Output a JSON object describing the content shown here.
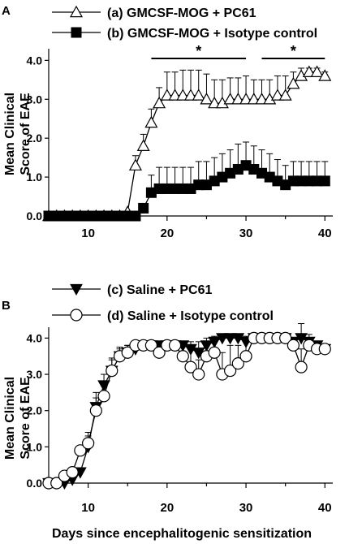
{
  "xlabel": "Days since encephalitogenic sensitization",
  "chart_data": [
    {
      "type": "line",
      "panel_label": "A",
      "title": "",
      "ylabel": "Mean Clinical Score of EAE",
      "ylabel_lines": [
        "Mean Clinical",
        "Score of EAE"
      ],
      "xlim": [
        5,
        41
      ],
      "ylim": [
        0,
        4.3
      ],
      "xticks": [
        10,
        20,
        30,
        40
      ],
      "yticks": [
        0.0,
        1.0,
        2.0,
        3.0,
        4.0
      ],
      "ytick_labels": [
        "0.0",
        "1.0",
        "2.0",
        "3.0",
        "4.0"
      ],
      "grid": false,
      "legend": "top",
      "series": [
        {
          "name": "(a) GMCSF-MOG + PC61",
          "marker": "triangle-up-open",
          "points": [
            [
              5,
              0
            ],
            [
              6,
              0
            ],
            [
              7,
              0
            ],
            [
              8,
              0
            ],
            [
              9,
              0
            ],
            [
              10,
              0
            ],
            [
              11,
              0
            ],
            [
              12,
              0
            ],
            [
              13,
              0
            ],
            [
              14,
              0
            ],
            [
              15,
              0.1
            ],
            [
              16,
              1.3
            ],
            [
              17,
              1.8
            ],
            [
              18,
              2.4
            ],
            [
              19,
              2.9
            ],
            [
              20,
              3.1
            ],
            [
              21,
              3.1
            ],
            [
              22,
              3.1
            ],
            [
              23,
              3.1
            ],
            [
              24,
              3.1
            ],
            [
              25,
              3.0
            ],
            [
              26,
              2.9
            ],
            [
              27,
              2.9
            ],
            [
              28,
              3.0
            ],
            [
              29,
              3.0
            ],
            [
              30,
              3.0
            ],
            [
              31,
              3.0
            ],
            [
              32,
              3.0
            ],
            [
              33,
              3.0
            ],
            [
              34,
              3.1
            ],
            [
              35,
              3.1
            ],
            [
              36,
              3.4
            ],
            [
              37,
              3.6
            ],
            [
              38,
              3.7
            ],
            [
              39,
              3.7
            ],
            [
              40,
              3.6
            ]
          ],
          "errors": [
            [
              16,
              0.25
            ],
            [
              17,
              0.3
            ],
            [
              18,
              0.35
            ],
            [
              19,
              0.4
            ],
            [
              20,
              0.6
            ],
            [
              21,
              0.6
            ],
            [
              22,
              0.65
            ],
            [
              23,
              0.65
            ],
            [
              24,
              0.65
            ],
            [
              25,
              0.65
            ],
            [
              26,
              0.6
            ],
            [
              27,
              0.6
            ],
            [
              28,
              0.55
            ],
            [
              29,
              0.55
            ],
            [
              30,
              0.6
            ],
            [
              31,
              0.5
            ],
            [
              32,
              0.5
            ],
            [
              33,
              0.5
            ],
            [
              34,
              0.5
            ],
            [
              35,
              0.5
            ],
            [
              36,
              0.3
            ],
            [
              37,
              0.2
            ],
            [
              38,
              0.1
            ],
            [
              39,
              0.1
            ],
            [
              40,
              0.1
            ]
          ]
        },
        {
          "name": "(b) GMCSF-MOG + Isotype control",
          "marker": "square-filled",
          "points": [
            [
              5,
              0
            ],
            [
              6,
              0
            ],
            [
              7,
              0
            ],
            [
              8,
              0
            ],
            [
              9,
              0
            ],
            [
              10,
              0
            ],
            [
              11,
              0
            ],
            [
              12,
              0
            ],
            [
              13,
              0
            ],
            [
              14,
              0
            ],
            [
              15,
              0
            ],
            [
              16,
              0
            ],
            [
              17,
              0.2
            ],
            [
              18,
              0.6
            ],
            [
              19,
              0.7
            ],
            [
              20,
              0.7
            ],
            [
              21,
              0.7
            ],
            [
              22,
              0.7
            ],
            [
              23,
              0.7
            ],
            [
              24,
              0.8
            ],
            [
              25,
              0.8
            ],
            [
              26,
              0.9
            ],
            [
              27,
              1.0
            ],
            [
              28,
              1.1
            ],
            [
              29,
              1.2
            ],
            [
              30,
              1.3
            ],
            [
              31,
              1.2
            ],
            [
              32,
              1.1
            ],
            [
              33,
              1.0
            ],
            [
              34,
              0.9
            ],
            [
              35,
              0.8
            ],
            [
              36,
              0.9
            ],
            [
              37,
              0.9
            ],
            [
              38,
              0.9
            ],
            [
              39,
              0.9
            ],
            [
              40,
              0.9
            ]
          ],
          "errors": [
            [
              18,
              0.45
            ],
            [
              19,
              0.55
            ],
            [
              20,
              0.55
            ],
            [
              21,
              0.55
            ],
            [
              22,
              0.55
            ],
            [
              23,
              0.55
            ],
            [
              24,
              0.6
            ],
            [
              25,
              0.6
            ],
            [
              26,
              0.6
            ],
            [
              27,
              0.6
            ],
            [
              28,
              0.6
            ],
            [
              29,
              0.65
            ],
            [
              30,
              0.6
            ],
            [
              31,
              0.6
            ],
            [
              32,
              0.6
            ],
            [
              33,
              0.6
            ],
            [
              34,
              0.55
            ],
            [
              35,
              0.5
            ],
            [
              36,
              0.5
            ],
            [
              37,
              0.5
            ],
            [
              38,
              0.5
            ],
            [
              39,
              0.5
            ],
            [
              40,
              0.5
            ]
          ]
        }
      ],
      "annotations": [
        {
          "text": "*",
          "x_start": 18,
          "x_end": 30,
          "y": 4.05
        },
        {
          "text": "*",
          "x_start": 32,
          "x_end": 40,
          "y": 4.05
        }
      ]
    },
    {
      "type": "line",
      "panel_label": "B",
      "title": "",
      "ylabel": "Mean Clinical Score of EAE",
      "ylabel_lines": [
        "Mean Clinical",
        "Score of EAE"
      ],
      "xlim": [
        5,
        41
      ],
      "ylim": [
        0,
        4.3
      ],
      "xticks": [
        10,
        20,
        30,
        40
      ],
      "yticks": [
        0.0,
        1.0,
        2.0,
        3.0,
        4.0
      ],
      "ytick_labels": [
        "0.0",
        "1.0",
        "2.0",
        "3.0",
        "4.0"
      ],
      "grid": false,
      "legend": "top",
      "series": [
        {
          "name": "(c) Saline + PC61",
          "marker": "triangle-down-filled",
          "points": [
            [
              5,
              0
            ],
            [
              6,
              0
            ],
            [
              7,
              0
            ],
            [
              8,
              0.1
            ],
            [
              9,
              0.3
            ],
            [
              10,
              1.0
            ],
            [
              11,
              2.1
            ],
            [
              12,
              2.7
            ],
            [
              13,
              3.1
            ],
            [
              14,
              3.5
            ],
            [
              15,
              3.6
            ],
            [
              16,
              3.7
            ],
            [
              17,
              3.8
            ],
            [
              18,
              3.8
            ],
            [
              19,
              3.8
            ],
            [
              20,
              3.8
            ],
            [
              21,
              3.8
            ],
            [
              22,
              3.8
            ],
            [
              23,
              3.7
            ],
            [
              24,
              3.6
            ],
            [
              25,
              3.8
            ],
            [
              26,
              3.9
            ],
            [
              27,
              4.0
            ],
            [
              28,
              4.0
            ],
            [
              29,
              4.0
            ],
            [
              30,
              3.9
            ],
            [
              31,
              4.0
            ],
            [
              32,
              4.0
            ],
            [
              33,
              4.0
            ],
            [
              34,
              4.0
            ],
            [
              35,
              4.0
            ],
            [
              36,
              3.9
            ],
            [
              37,
              4.0
            ],
            [
              38,
              3.9
            ],
            [
              39,
              3.8
            ],
            [
              40,
              3.7
            ]
          ],
          "errors": [
            [
              10,
              0.3
            ],
            [
              11,
              0.4
            ],
            [
              12,
              0.3
            ],
            [
              13,
              0.3
            ],
            [
              14,
              0.2
            ],
            [
              15,
              0.2
            ],
            [
              16,
              0.15
            ],
            [
              17,
              0.1
            ],
            [
              18,
              0.1
            ],
            [
              20,
              0.1
            ],
            [
              23,
              0.2
            ],
            [
              24,
              0.3
            ],
            [
              25,
              0.2
            ],
            [
              26,
              0.15
            ],
            [
              30,
              0.15
            ],
            [
              37,
              0.4
            ],
            [
              38,
              0.2
            ]
          ]
        },
        {
          "name": "(d) Saline + Isotype control",
          "marker": "circle-open",
          "points": [
            [
              5,
              0
            ],
            [
              6,
              0
            ],
            [
              7,
              0.2
            ],
            [
              8,
              0.3
            ],
            [
              9,
              0.9
            ],
            [
              10,
              1.1
            ],
            [
              11,
              2.0
            ],
            [
              12,
              2.4
            ],
            [
              13,
              3.1
            ],
            [
              14,
              3.5
            ],
            [
              15,
              3.6
            ],
            [
              16,
              3.8
            ],
            [
              17,
              3.8
            ],
            [
              18,
              3.8
            ],
            [
              19,
              3.6
            ],
            [
              20,
              3.8
            ],
            [
              21,
              3.8
            ],
            [
              22,
              3.5
            ],
            [
              23,
              3.2
            ],
            [
              24,
              3.0
            ],
            [
              25,
              3.5
            ],
            [
              26,
              3.6
            ],
            [
              27,
              3.0
            ],
            [
              28,
              3.1
            ],
            [
              29,
              3.3
            ],
            [
              30,
              3.5
            ],
            [
              31,
              4.0
            ],
            [
              32,
              4.0
            ],
            [
              33,
              4.0
            ],
            [
              34,
              4.0
            ],
            [
              35,
              4.0
            ],
            [
              36,
              3.8
            ],
            [
              37,
              3.2
            ],
            [
              38,
              3.8
            ],
            [
              39,
              3.7
            ],
            [
              40,
              3.7
            ]
          ],
          "errors": [
            [
              10,
              0.3
            ],
            [
              11,
              0.35
            ],
            [
              12,
              0.4
            ],
            [
              13,
              0.35
            ],
            [
              14,
              0.25
            ],
            [
              15,
              0.2
            ],
            [
              19,
              0.2
            ],
            [
              22,
              0.35
            ],
            [
              23,
              0.5
            ],
            [
              24,
              0.4
            ],
            [
              27,
              0.6
            ],
            [
              28,
              0.7
            ],
            [
              29,
              0.5
            ],
            [
              30,
              0.4
            ],
            [
              37,
              0.5
            ],
            [
              38,
              0.2
            ]
          ]
        }
      ],
      "annotations": []
    }
  ]
}
